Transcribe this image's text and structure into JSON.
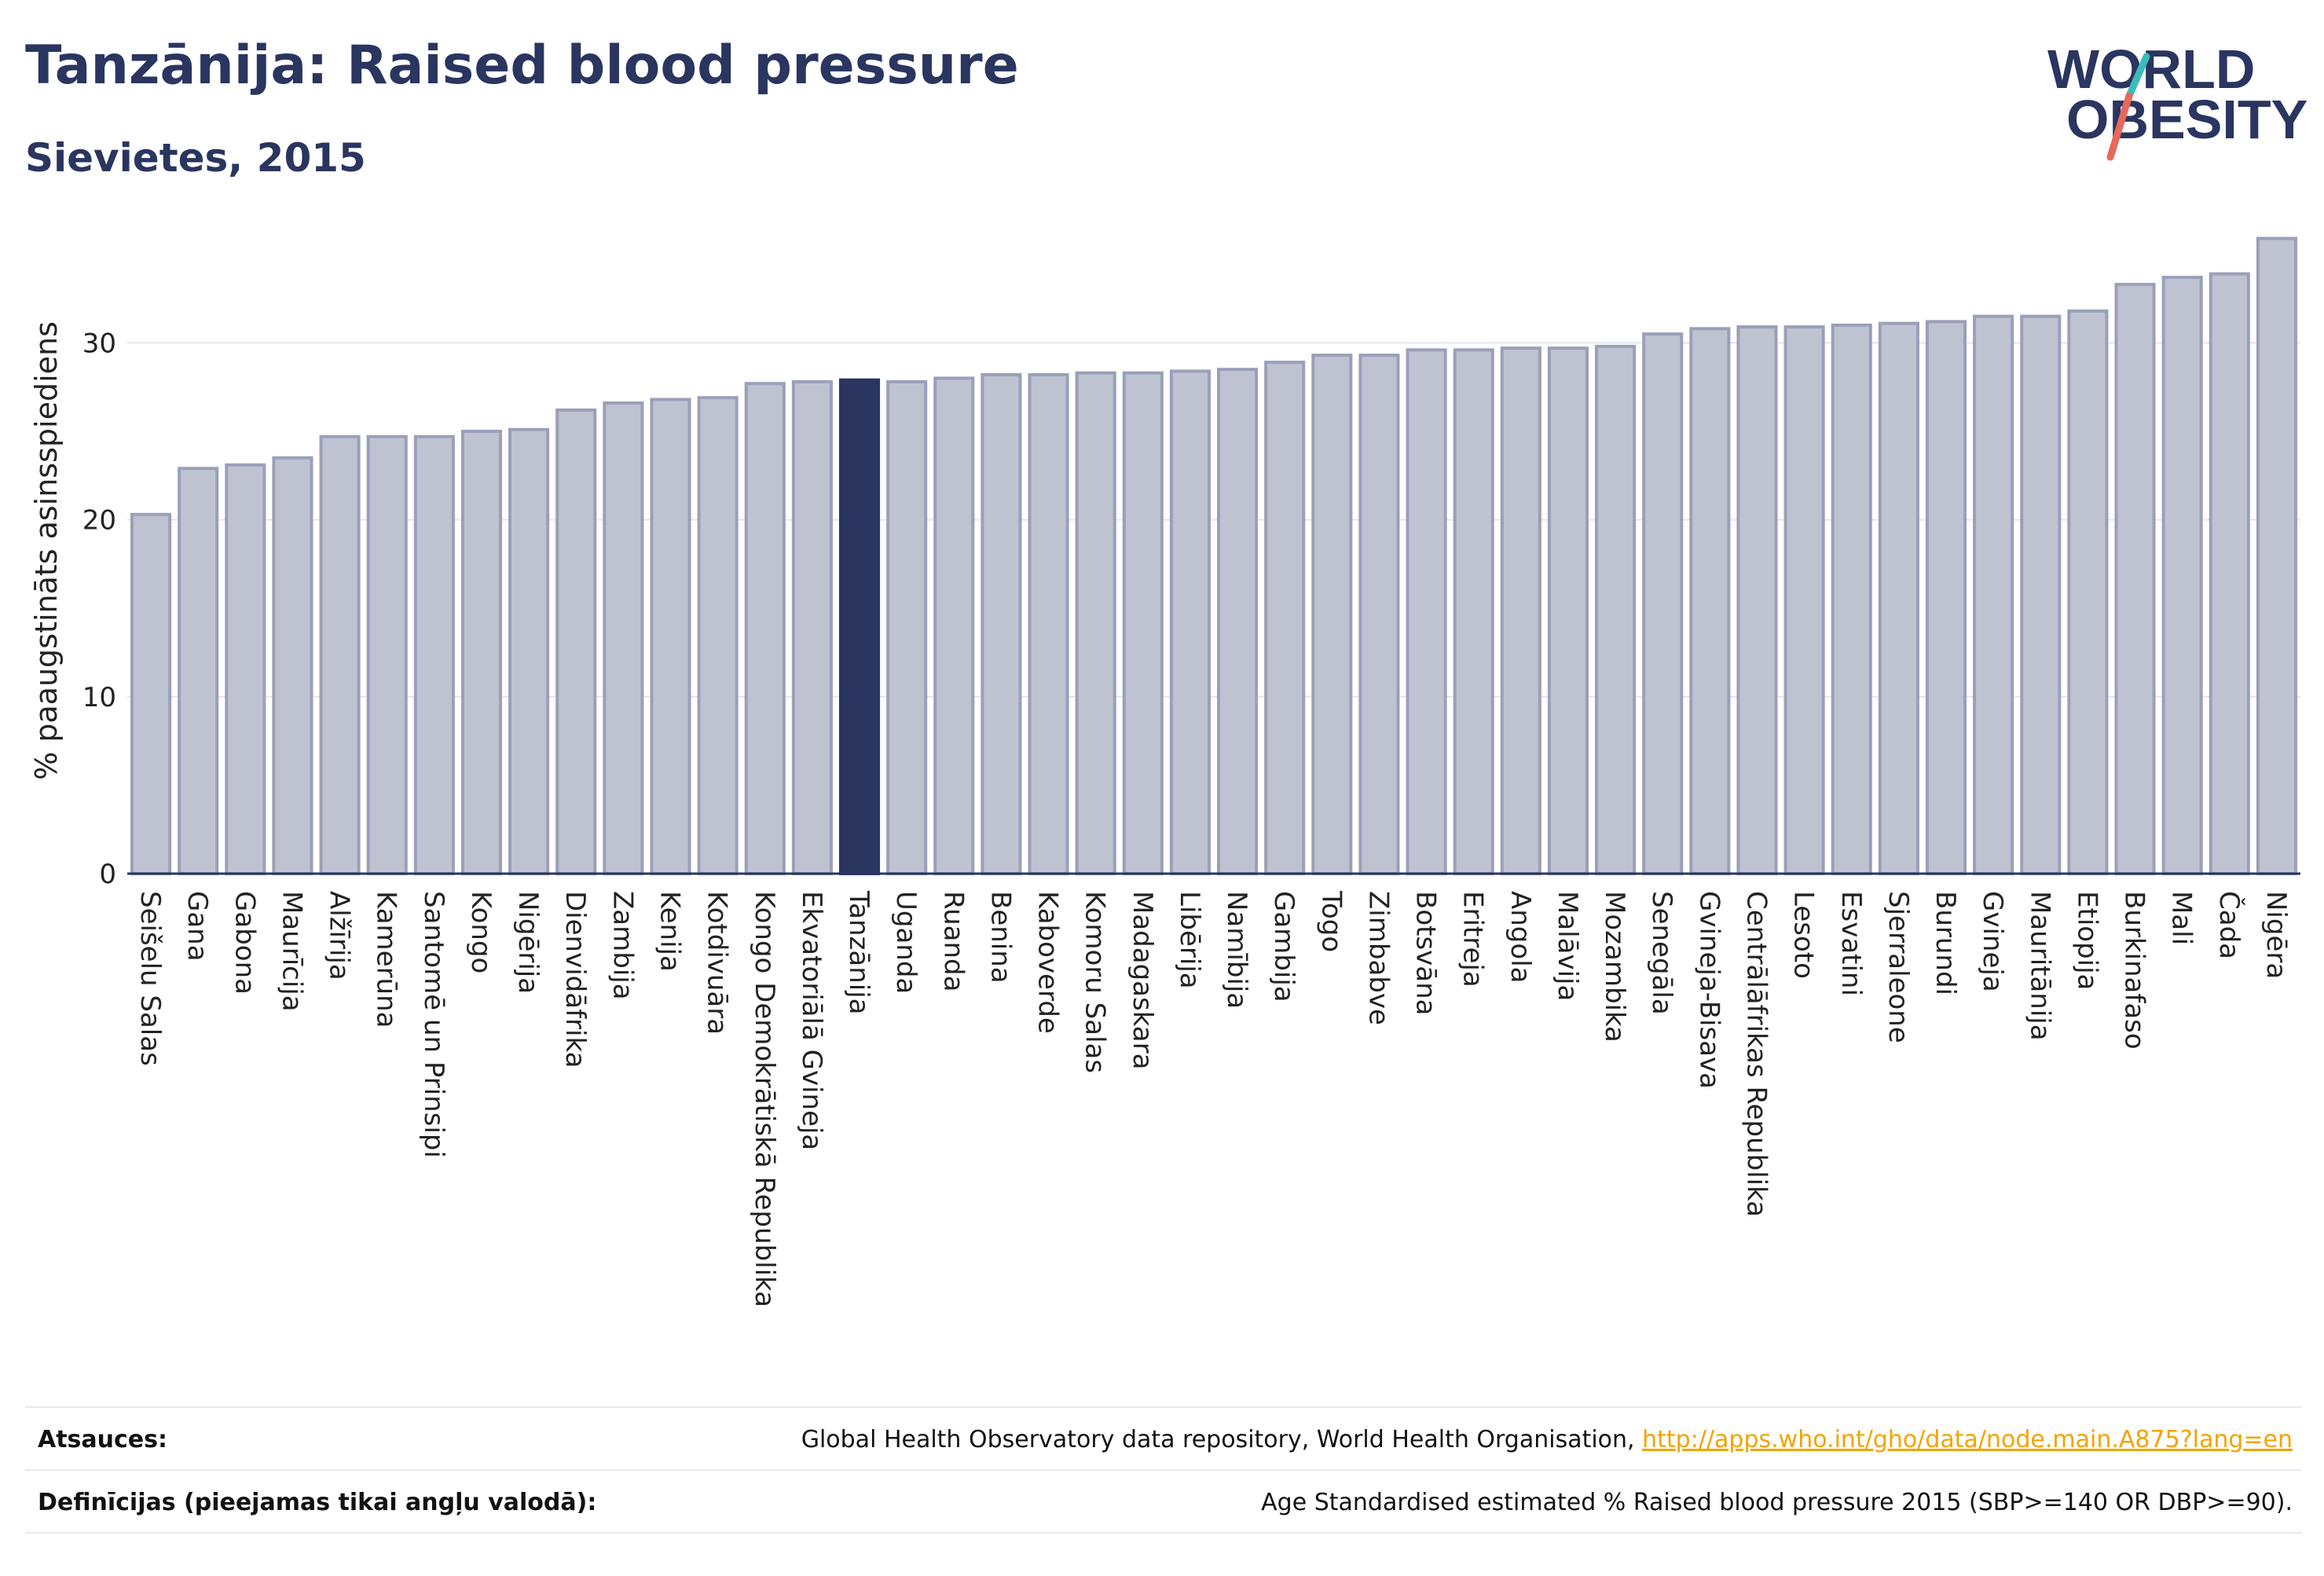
{
  "header": {
    "title": "Tanzānija: Raised blood pressure",
    "subtitle": "Sievietes, 2015"
  },
  "logo": {
    "line1": "WORLD",
    "line2": "OBESITY"
  },
  "footer": {
    "sources_label": "Atsauces:",
    "sources_text": "Global Health Observatory data repository, World Health Organisation,",
    "sources_link": "http://apps.who.int/gho/data/node.main.A875?lang=en",
    "definitions_label": "Definīcijas (pieejamas tikai angļu valodā):",
    "definitions_text": "Age Standardised estimated % Raised blood pressure 2015 (SBP>=140 OR DBP>=90)."
  },
  "colors": {
    "bar": "#bfc3d1",
    "bar_stroke": "#9aa0b8",
    "highlight": "#2a3560",
    "text": "#2a3560",
    "accent_red": "#e8685a",
    "accent_teal": "#3bbcb8"
  },
  "chart_data": {
    "type": "bar",
    "ylabel": "% paaugstināts asinsspiediens",
    "ylim": [
      0,
      36.5
    ],
    "yticks": [
      0,
      10,
      20,
      30
    ],
    "grid": true,
    "highlight": "Tanzānija",
    "categories": [
      "Seišelu Salas",
      "Gana",
      "Gabona",
      "Maurīcija",
      "Alžīrija",
      "Kamerūna",
      "Santomē un Prinsipi",
      "Kongo",
      "Nigērija",
      "Dienvidāfrika",
      "Zambija",
      "Kenija",
      "Kotdivuāra",
      "Kongo Demokrātiskā Republika",
      "Ekvatoriālā Gvineja",
      "Tanzānija",
      "Uganda",
      "Ruanda",
      "Benina",
      "Kaboverde",
      "Komoru Salas",
      "Madagaskara",
      "Libērija",
      "Namībija",
      "Gambija",
      "Togo",
      "Zimbabve",
      "Botsvāna",
      "Eritreja",
      "Angola",
      "Malāvija",
      "Mozambika",
      "Senegāla",
      "Gvineja-Bisava",
      "Centrālāfrikas Republika",
      "Lesoto",
      "Esvatini",
      "Sjerraleone",
      "Burundi",
      "Gvineja",
      "Mauritānija",
      "Etiopija",
      "Burkinafaso",
      "Mali",
      "Čada",
      "Nigēra"
    ],
    "values": [
      20.3,
      22.9,
      23.1,
      23.5,
      24.7,
      24.7,
      24.7,
      25.0,
      25.1,
      26.2,
      26.6,
      26.8,
      26.9,
      27.7,
      27.8,
      27.9,
      27.8,
      28.0,
      28.2,
      28.2,
      28.3,
      28.3,
      28.4,
      28.5,
      28.9,
      29.3,
      29.3,
      29.6,
      29.6,
      29.7,
      29.7,
      29.8,
      30.5,
      30.8,
      30.9,
      30.9,
      31.0,
      31.1,
      31.2,
      31.5,
      31.5,
      31.8,
      33.3,
      33.7,
      33.9,
      35.9
    ]
  }
}
